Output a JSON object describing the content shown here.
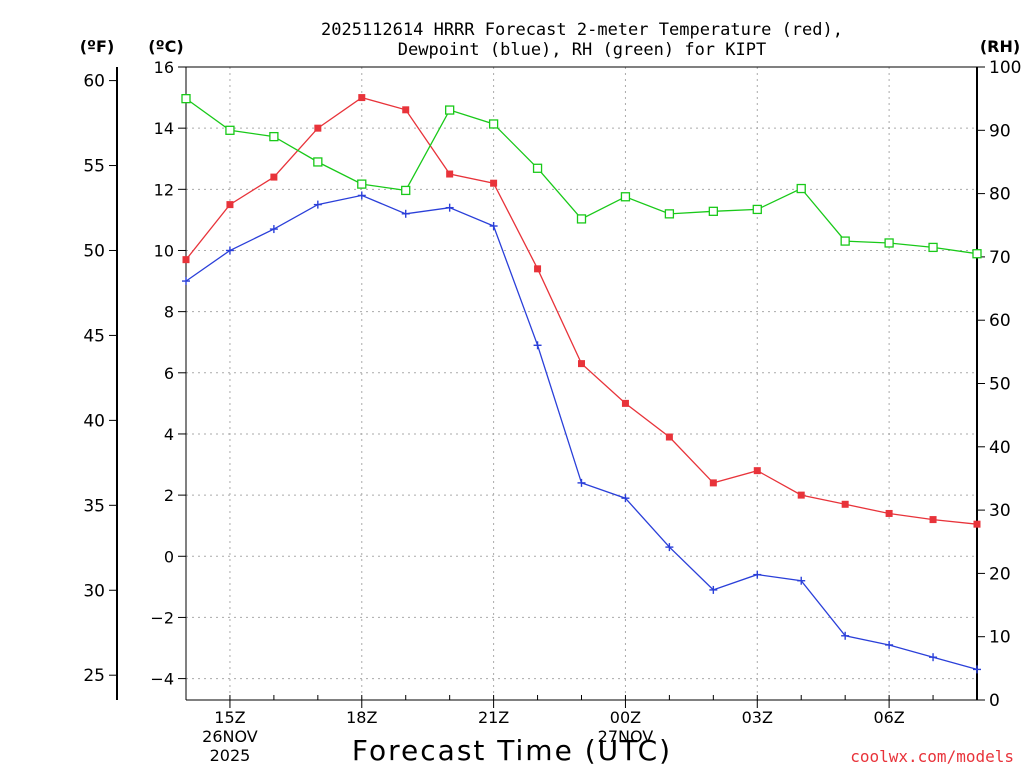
{
  "chart_data": {
    "type": "line",
    "title_line1": "2025112614 HRRR Forecast 2-meter Temperature (red),",
    "title_line2": "Dewpoint (blue), RH (green) for KIPT",
    "xlabel": "Forecast Time (UTC)",
    "credit": "coolwx.com/models",
    "unit_labels": {
      "fahrenheit": "(ºF)",
      "celsius": "(ºC)",
      "rh": "(RH)"
    },
    "colors": {
      "temperature": "#e8333a",
      "dewpoint": "#2a3fd9",
      "rh": "#19c919",
      "grid": "#aaaaaa"
    },
    "x_ticks": [
      {
        "hour": 1,
        "label": "15Z",
        "sub1": "26NOV",
        "sub2": "2025"
      },
      {
        "hour": 4,
        "label": "18Z",
        "sub1": "",
        "sub2": ""
      },
      {
        "hour": 7,
        "label": "21Z",
        "sub1": "",
        "sub2": ""
      },
      {
        "hour": 10,
        "label": "00Z",
        "sub1": "27NOV",
        "sub2": ""
      },
      {
        "hour": 13,
        "label": "03Z",
        "sub1": "",
        "sub2": ""
      },
      {
        "hour": 16,
        "label": "06Z",
        "sub1": "",
        "sub2": ""
      }
    ],
    "x_range": [
      0,
      18
    ],
    "celsius_range": [
      -4.7,
      16.0
    ],
    "celsius_ticks": [
      16,
      14,
      12,
      10,
      8,
      6,
      4,
      2,
      0,
      -2,
      -4
    ],
    "celsius_tick_labels": [
      "16",
      "14",
      "12",
      "10",
      "8",
      "6",
      "4",
      "2",
      "0",
      "−2",
      "−4"
    ],
    "fahrenheit_ticks": [
      60,
      55,
      50,
      45,
      40,
      35,
      30,
      25
    ],
    "fahrenheit_tick_labels": [
      "60",
      "55",
      "50",
      "45",
      "40",
      "35",
      "30",
      "25"
    ],
    "rh_range": [
      0,
      100
    ],
    "rh_ticks": [
      100,
      90,
      80,
      70,
      60,
      50,
      40,
      30,
      20,
      10,
      0
    ],
    "rh_tick_labels": [
      "100",
      "90",
      "80",
      "70",
      "60",
      "50",
      "40",
      "30",
      "20",
      "10",
      "0"
    ],
    "series": [
      {
        "name": "Temperature (C)",
        "axis": "celsius",
        "marker": "filled-square",
        "values": [
          9.7,
          11.5,
          12.4,
          14.0,
          15.0,
          14.6,
          12.5,
          12.2,
          9.4,
          6.3,
          5.0,
          3.9,
          2.4,
          2.8,
          2.0,
          1.7,
          1.4,
          1.2,
          1.05
        ]
      },
      {
        "name": "Dewpoint (C)",
        "axis": "celsius",
        "marker": "plus",
        "values": [
          9.0,
          10.0,
          10.7,
          11.5,
          11.8,
          11.2,
          11.4,
          10.8,
          6.9,
          2.4,
          1.9,
          0.3,
          -1.1,
          -0.6,
          -0.8,
          -2.6,
          -2.9,
          -3.3,
          -3.7
        ]
      },
      {
        "name": "RH (%)",
        "axis": "rh",
        "marker": "open-square",
        "values": [
          95,
          90,
          89,
          85,
          81.5,
          80.5,
          93.2,
          91,
          84,
          76,
          79.5,
          76.8,
          77.2,
          77.5,
          80.8,
          72.5,
          72.2,
          71.5,
          70.5
        ]
      }
    ]
  }
}
